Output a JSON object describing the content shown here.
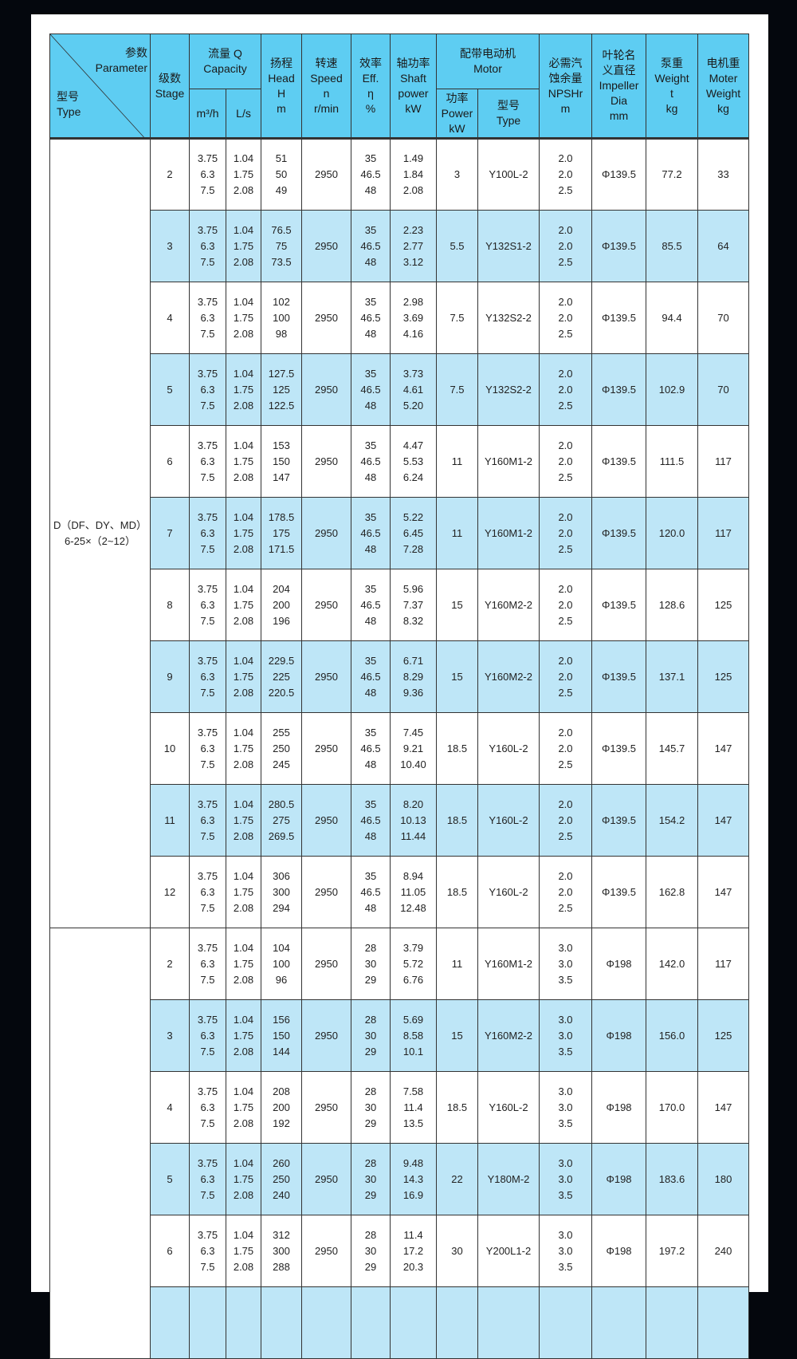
{
  "colors": {
    "header": "#5ecdf2",
    "row_alt": "#bee6f7",
    "page": "#ffffff",
    "background": "#04070d"
  },
  "header": {
    "param_cn": "参数",
    "param_en": "Parameter",
    "type_cn": "型号",
    "type_en": "Type",
    "stage_cn": "级数",
    "stage_en": "Stage",
    "capacity_cn": "流量 Q",
    "capacity_en": "Capacity",
    "unit_m3h": "m³/h",
    "unit_ls": "L/s",
    "head_cn": "扬程",
    "head_en": "Head",
    "head_sym": "H",
    "head_unit": "m",
    "speed_cn": "转速",
    "speed_en": "Speed",
    "speed_sym": "n",
    "speed_unit": "r/min",
    "eff_cn": "效率",
    "eff_en": "Eff.",
    "eff_sym": "η",
    "eff_unit": "%",
    "shaft_cn": "轴功率",
    "shaft_en1": "Shaft",
    "shaft_en2": "power",
    "shaft_unit": "kW",
    "motor_cn": "配带电动机",
    "motor_en": "Motor",
    "mpower_cn": "功率",
    "mpower_en": "Power",
    "mpower_unit": "kW",
    "mtype_cn": "型号",
    "mtype_en": "Type",
    "npsh_cn1": "必需汽",
    "npsh_cn2": "蚀余量",
    "npsh_en": "NPSHr",
    "npsh_unit": "m",
    "imp_cn1": "叶轮名",
    "imp_cn2": "义直径",
    "imp_en1": "Impeller",
    "imp_en2": "Dia",
    "imp_unit": "mm",
    "pw_cn": "泵重",
    "pw_en": "Weight",
    "pw_sym": "t",
    "pw_unit": "kg",
    "mw_cn": "电机重",
    "mw_en1": "Moter",
    "mw_en2": "Weight",
    "mw_unit": "kg"
  },
  "groups": [
    {
      "type_lines": [
        "D（DF、DY、MD）",
        "6-25×（2~12）"
      ],
      "rows": [
        {
          "stage": "2",
          "q": [
            "3.75",
            "6.3",
            "7.5"
          ],
          "ls": [
            "1.04",
            "1.75",
            "2.08"
          ],
          "head": [
            "51",
            "50",
            "49"
          ],
          "speed": "2950",
          "eff": [
            "35",
            "46.5",
            "48"
          ],
          "shaft": [
            "1.49",
            "1.84",
            "2.08"
          ],
          "power": "3",
          "motor": "Y100L-2",
          "npsh": [
            "2.0",
            "2.0",
            "2.5"
          ],
          "impeller": "Φ139.5",
          "weight": "77.2",
          "motor_weight": "33"
        },
        {
          "stage": "3",
          "q": [
            "3.75",
            "6.3",
            "7.5"
          ],
          "ls": [
            "1.04",
            "1.75",
            "2.08"
          ],
          "head": [
            "76.5",
            "75",
            "73.5"
          ],
          "speed": "2950",
          "eff": [
            "35",
            "46.5",
            "48"
          ],
          "shaft": [
            "2.23",
            "2.77",
            "3.12"
          ],
          "power": "5.5",
          "motor": "Y132S1-2",
          "npsh": [
            "2.0",
            "2.0",
            "2.5"
          ],
          "impeller": "Φ139.5",
          "weight": "85.5",
          "motor_weight": "64"
        },
        {
          "stage": "4",
          "q": [
            "3.75",
            "6.3",
            "7.5"
          ],
          "ls": [
            "1.04",
            "1.75",
            "2.08"
          ],
          "head": [
            "102",
            "100",
            "98"
          ],
          "speed": "2950",
          "eff": [
            "35",
            "46.5",
            "48"
          ],
          "shaft": [
            "2.98",
            "3.69",
            "4.16"
          ],
          "power": "7.5",
          "motor": "Y132S2-2",
          "npsh": [
            "2.0",
            "2.0",
            "2.5"
          ],
          "impeller": "Φ139.5",
          "weight": "94.4",
          "motor_weight": "70"
        },
        {
          "stage": "5",
          "q": [
            "3.75",
            "6.3",
            "7.5"
          ],
          "ls": [
            "1.04",
            "1.75",
            "2.08"
          ],
          "head": [
            "127.5",
            "125",
            "122.5"
          ],
          "speed": "2950",
          "eff": [
            "35",
            "46.5",
            "48"
          ],
          "shaft": [
            "3.73",
            "4.61",
            "5.20"
          ],
          "power": "7.5",
          "motor": "Y132S2-2",
          "npsh": [
            "2.0",
            "2.0",
            "2.5"
          ],
          "impeller": "Φ139.5",
          "weight": "102.9",
          "motor_weight": "70"
        },
        {
          "stage": "6",
          "q": [
            "3.75",
            "6.3",
            "7.5"
          ],
          "ls": [
            "1.04",
            "1.75",
            "2.08"
          ],
          "head": [
            "153",
            "150",
            "147"
          ],
          "speed": "2950",
          "eff": [
            "35",
            "46.5",
            "48"
          ],
          "shaft": [
            "4.47",
            "5.53",
            "6.24"
          ],
          "power": "11",
          "motor": "Y160M1-2",
          "npsh": [
            "2.0",
            "2.0",
            "2.5"
          ],
          "impeller": "Φ139.5",
          "weight": "111.5",
          "motor_weight": "117"
        },
        {
          "stage": "7",
          "q": [
            "3.75",
            "6.3",
            "7.5"
          ],
          "ls": [
            "1.04",
            "1.75",
            "2.08"
          ],
          "head": [
            "178.5",
            "175",
            "171.5"
          ],
          "speed": "2950",
          "eff": [
            "35",
            "46.5",
            "48"
          ],
          "shaft": [
            "5.22",
            "6.45",
            "7.28"
          ],
          "power": "11",
          "motor": "Y160M1-2",
          "npsh": [
            "2.0",
            "2.0",
            "2.5"
          ],
          "impeller": "Φ139.5",
          "weight": "120.0",
          "motor_weight": "117"
        },
        {
          "stage": "8",
          "q": [
            "3.75",
            "6.3",
            "7.5"
          ],
          "ls": [
            "1.04",
            "1.75",
            "2.08"
          ],
          "head": [
            "204",
            "200",
            "196"
          ],
          "speed": "2950",
          "eff": [
            "35",
            "46.5",
            "48"
          ],
          "shaft": [
            "5.96",
            "7.37",
            "8.32"
          ],
          "power": "15",
          "motor": "Y160M2-2",
          "npsh": [
            "2.0",
            "2.0",
            "2.5"
          ],
          "impeller": "Φ139.5",
          "weight": "128.6",
          "motor_weight": "125"
        },
        {
          "stage": "9",
          "q": [
            "3.75",
            "6.3",
            "7.5"
          ],
          "ls": [
            "1.04",
            "1.75",
            "2.08"
          ],
          "head": [
            "229.5",
            "225",
            "220.5"
          ],
          "speed": "2950",
          "eff": [
            "35",
            "46.5",
            "48"
          ],
          "shaft": [
            "6.71",
            "8.29",
            "9.36"
          ],
          "power": "15",
          "motor": "Y160M2-2",
          "npsh": [
            "2.0",
            "2.0",
            "2.5"
          ],
          "impeller": "Φ139.5",
          "weight": "137.1",
          "motor_weight": "125"
        },
        {
          "stage": "10",
          "q": [
            "3.75",
            "6.3",
            "7.5"
          ],
          "ls": [
            "1.04",
            "1.75",
            "2.08"
          ],
          "head": [
            "255",
            "250",
            "245"
          ],
          "speed": "2950",
          "eff": [
            "35",
            "46.5",
            "48"
          ],
          "shaft": [
            "7.45",
            "9.21",
            "10.40"
          ],
          "power": "18.5",
          "motor": "Y160L-2",
          "npsh": [
            "2.0",
            "2.0",
            "2.5"
          ],
          "impeller": "Φ139.5",
          "weight": "145.7",
          "motor_weight": "147"
        },
        {
          "stage": "11",
          "q": [
            "3.75",
            "6.3",
            "7.5"
          ],
          "ls": [
            "1.04",
            "1.75",
            "2.08"
          ],
          "head": [
            "280.5",
            "275",
            "269.5"
          ],
          "speed": "2950",
          "eff": [
            "35",
            "46.5",
            "48"
          ],
          "shaft": [
            "8.20",
            "10.13",
            "11.44"
          ],
          "power": "18.5",
          "motor": "Y160L-2",
          "npsh": [
            "2.0",
            "2.0",
            "2.5"
          ],
          "impeller": "Φ139.5",
          "weight": "154.2",
          "motor_weight": "147"
        },
        {
          "stage": "12",
          "q": [
            "3.75",
            "6.3",
            "7.5"
          ],
          "ls": [
            "1.04",
            "1.75",
            "2.08"
          ],
          "head": [
            "306",
            "300",
            "294"
          ],
          "speed": "2950",
          "eff": [
            "35",
            "46.5",
            "48"
          ],
          "shaft": [
            "8.94",
            "11.05",
            "12.48"
          ],
          "power": "18.5",
          "motor": "Y160L-2",
          "npsh": [
            "2.0",
            "2.0",
            "2.5"
          ],
          "impeller": "Φ139.5",
          "weight": "162.8",
          "motor_weight": "147"
        }
      ]
    },
    {
      "type_lines": [],
      "rows": [
        {
          "stage": "2",
          "q": [
            "3.75",
            "6.3",
            "7.5"
          ],
          "ls": [
            "1.04",
            "1.75",
            "2.08"
          ],
          "head": [
            "104",
            "100",
            "96"
          ],
          "speed": "2950",
          "eff": [
            "28",
            "30",
            "29"
          ],
          "shaft": [
            "3.79",
            "5.72",
            "6.76"
          ],
          "power": "11",
          "motor": "Y160M1-2",
          "npsh": [
            "3.0",
            "3.0",
            "3.5"
          ],
          "impeller": "Φ198",
          "weight": "142.0",
          "motor_weight": "117"
        },
        {
          "stage": "3",
          "q": [
            "3.75",
            "6.3",
            "7.5"
          ],
          "ls": [
            "1.04",
            "1.75",
            "2.08"
          ],
          "head": [
            "156",
            "150",
            "144"
          ],
          "speed": "2950",
          "eff": [
            "28",
            "30",
            "29"
          ],
          "shaft": [
            "5.69",
            "8.58",
            "10.1"
          ],
          "power": "15",
          "motor": "Y160M2-2",
          "npsh": [
            "3.0",
            "3.0",
            "3.5"
          ],
          "impeller": "Φ198",
          "weight": "156.0",
          "motor_weight": "125"
        },
        {
          "stage": "4",
          "q": [
            "3.75",
            "6.3",
            "7.5"
          ],
          "ls": [
            "1.04",
            "1.75",
            "2.08"
          ],
          "head": [
            "208",
            "200",
            "192"
          ],
          "speed": "2950",
          "eff": [
            "28",
            "30",
            "29"
          ],
          "shaft": [
            "7.58",
            "11.4",
            "13.5"
          ],
          "power": "18.5",
          "motor": "Y160L-2",
          "npsh": [
            "3.0",
            "3.0",
            "3.5"
          ],
          "impeller": "Φ198",
          "weight": "170.0",
          "motor_weight": "147"
        },
        {
          "stage": "5",
          "q": [
            "3.75",
            "6.3",
            "7.5"
          ],
          "ls": [
            "1.04",
            "1.75",
            "2.08"
          ],
          "head": [
            "260",
            "250",
            "240"
          ],
          "speed": "2950",
          "eff": [
            "28",
            "30",
            "29"
          ],
          "shaft": [
            "9.48",
            "14.3",
            "16.9"
          ],
          "power": "22",
          "motor": "Y180M-2",
          "npsh": [
            "3.0",
            "3.0",
            "3.5"
          ],
          "impeller": "Φ198",
          "weight": "183.6",
          "motor_weight": "180"
        },
        {
          "stage": "6",
          "q": [
            "3.75",
            "6.3",
            "7.5"
          ],
          "ls": [
            "1.04",
            "1.75",
            "2.08"
          ],
          "head": [
            "312",
            "300",
            "288"
          ],
          "speed": "2950",
          "eff": [
            "28",
            "30",
            "29"
          ],
          "shaft": [
            "11.4",
            "17.2",
            "20.3"
          ],
          "power": "30",
          "motor": "Y200L1-2",
          "npsh": [
            "3.0",
            "3.0",
            "3.5"
          ],
          "impeller": "Φ198",
          "weight": "197.2",
          "motor_weight": "240"
        },
        {}
      ]
    }
  ]
}
